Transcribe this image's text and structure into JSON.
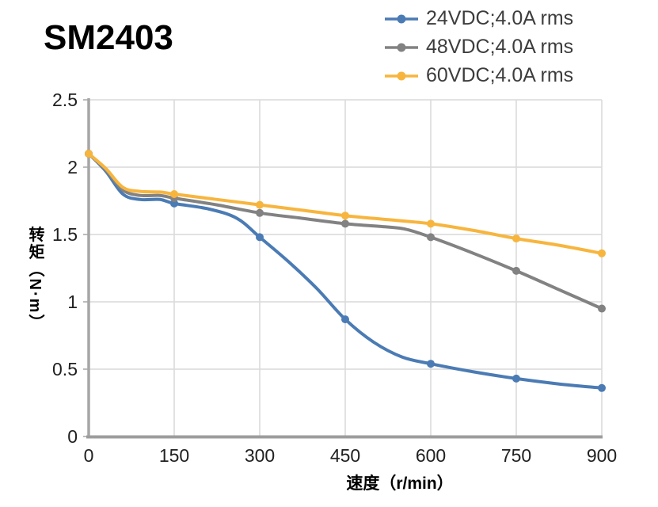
{
  "title": "SM2403",
  "legend": {
    "items": [
      {
        "label": "24VDC;4.0A rms",
        "color": "#4b7bb4"
      },
      {
        "label": "48VDC;4.0A rms",
        "color": "#828282"
      },
      {
        "label": "60VDC;4.0A rms",
        "color": "#f7b53e"
      }
    ]
  },
  "axes": {
    "x_label": "速度（r/min）",
    "y_label": "转矩（N·m）",
    "x_tick_labels": [
      "0",
      "150",
      "300",
      "450",
      "600",
      "750",
      "900"
    ],
    "y_tick_labels": [
      "0",
      "0.5",
      "1",
      "1.5",
      "2",
      "2.5"
    ]
  },
  "colors": {
    "gridline": "#d9d9d9",
    "y_axis": "#a6a6a6",
    "x_axis": "#9c9c9c",
    "tick_text": "#212121",
    "legend_text": "#3d3d3d",
    "background": "#ffffff"
  },
  "chart_data": {
    "type": "line",
    "title": "SM2403",
    "xlabel": "速度（r/min）",
    "ylabel": "转矩（N·m）",
    "xlim": [
      0,
      900
    ],
    "ylim": [
      0,
      2.5
    ],
    "x_ticks": [
      0,
      150,
      300,
      450,
      600,
      750,
      900
    ],
    "y_ticks": [
      0,
      0.5,
      1,
      1.5,
      2,
      2.5
    ],
    "grid": true,
    "legend_position": "top-right",
    "marker_x": [
      0,
      150,
      300,
      450,
      600,
      750,
      900
    ],
    "series": [
      {
        "name": "24VDC;4.0A rms",
        "color": "#4b7bb4",
        "marker_values": [
          2.1,
          1.73,
          1.48,
          0.87,
          0.54,
          0.43,
          0.36
        ],
        "points": [
          [
            0,
            2.1
          ],
          [
            30,
            1.97
          ],
          [
            60,
            1.8
          ],
          [
            90,
            1.76
          ],
          [
            125,
            1.76
          ],
          [
            150,
            1.73
          ],
          [
            210,
            1.69
          ],
          [
            260,
            1.62
          ],
          [
            300,
            1.48
          ],
          [
            350,
            1.3
          ],
          [
            400,
            1.1
          ],
          [
            450,
            0.87
          ],
          [
            500,
            0.7
          ],
          [
            550,
            0.59
          ],
          [
            600,
            0.54
          ],
          [
            675,
            0.48
          ],
          [
            750,
            0.43
          ],
          [
            825,
            0.39
          ],
          [
            900,
            0.36
          ]
        ]
      },
      {
        "name": "48VDC;4.0A rms",
        "color": "#828282",
        "marker_values": [
          2.1,
          1.77,
          1.66,
          1.58,
          1.48,
          1.23,
          0.95
        ],
        "points": [
          [
            0,
            2.1
          ],
          [
            30,
            1.98
          ],
          [
            60,
            1.83
          ],
          [
            90,
            1.79
          ],
          [
            125,
            1.79
          ],
          [
            150,
            1.77
          ],
          [
            225,
            1.72
          ],
          [
            300,
            1.66
          ],
          [
            375,
            1.62
          ],
          [
            450,
            1.58
          ],
          [
            510,
            1.56
          ],
          [
            555,
            1.54
          ],
          [
            600,
            1.48
          ],
          [
            675,
            1.36
          ],
          [
            750,
            1.23
          ],
          [
            825,
            1.09
          ],
          [
            900,
            0.95
          ]
        ]
      },
      {
        "name": "60VDC;4.0A rms",
        "color": "#f7b53e",
        "marker_values": [
          2.1,
          1.8,
          1.72,
          1.64,
          1.58,
          1.47,
          1.36
        ],
        "points": [
          [
            0,
            2.1
          ],
          [
            30,
            1.99
          ],
          [
            60,
            1.85
          ],
          [
            90,
            1.82
          ],
          [
            125,
            1.815
          ],
          [
            150,
            1.8
          ],
          [
            225,
            1.76
          ],
          [
            300,
            1.72
          ],
          [
            375,
            1.68
          ],
          [
            450,
            1.64
          ],
          [
            525,
            1.61
          ],
          [
            600,
            1.58
          ],
          [
            675,
            1.53
          ],
          [
            750,
            1.47
          ],
          [
            825,
            1.42
          ],
          [
            900,
            1.36
          ]
        ]
      }
    ]
  }
}
